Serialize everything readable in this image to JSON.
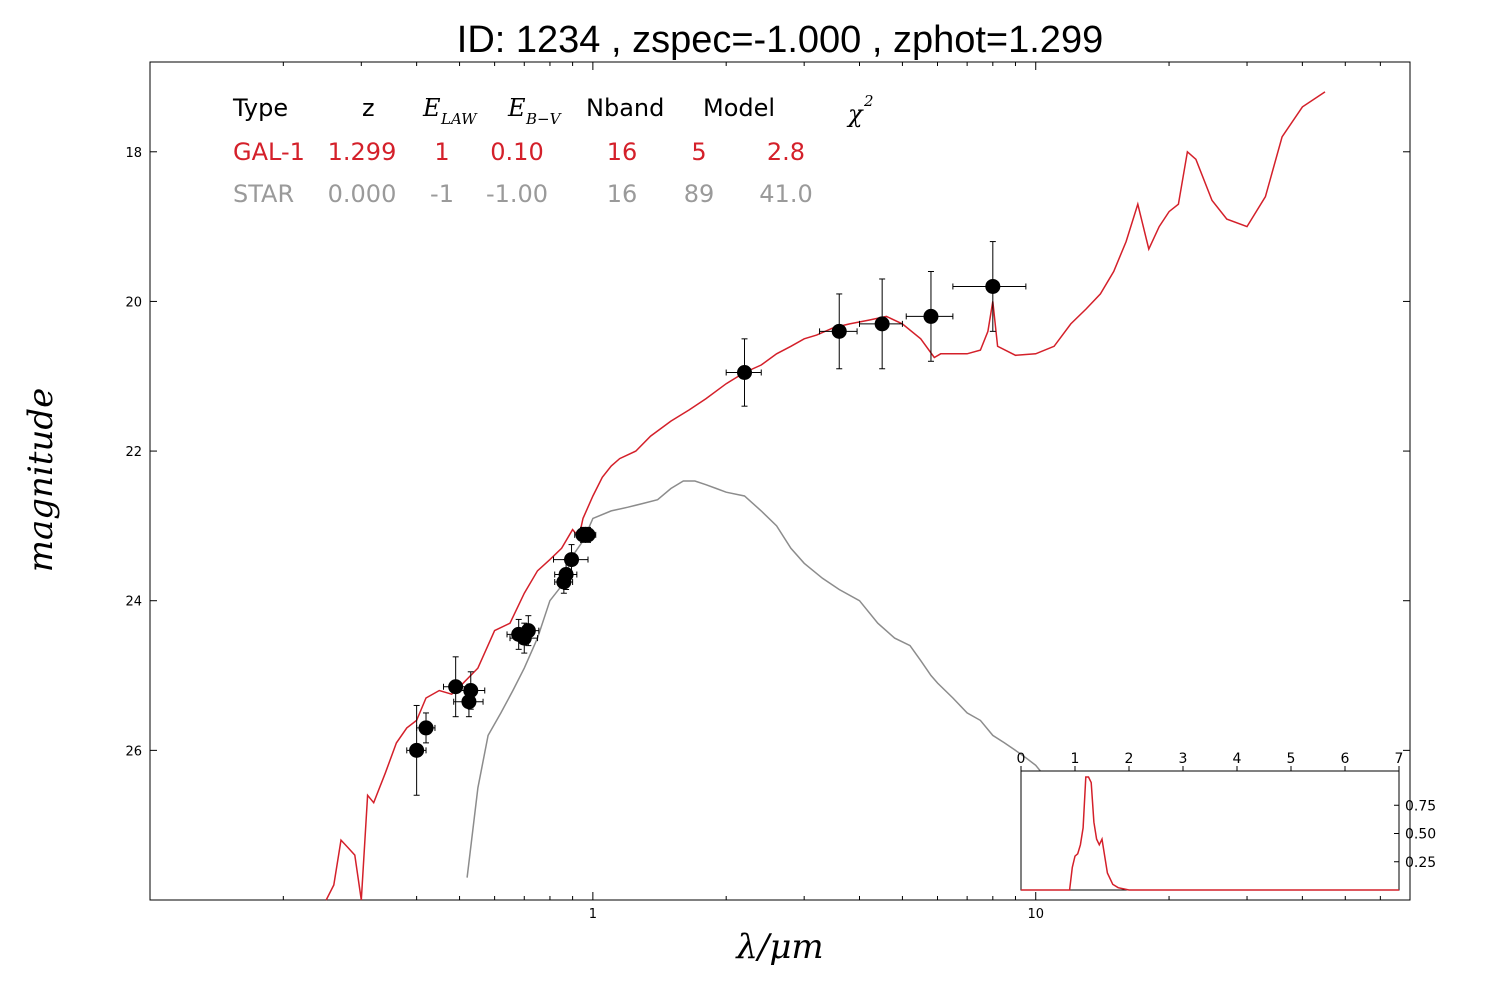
{
  "chart_data": [
    {
      "type": "line",
      "title": "ID:  1234  , zspec=-1.000 , zphot=1.299",
      "xlabel": "λ/μm",
      "ylabel": "magnitude",
      "xscale": "log",
      "xlim": [
        0.1,
        70
      ],
      "ylim": [
        28,
        16.8
      ],
      "x_ticks": [
        1,
        10
      ],
      "x_tick_labels": [
        "1",
        "10"
      ],
      "y_ticks": [
        18,
        20,
        22,
        24,
        26
      ],
      "y_tick_labels": [
        "18",
        "20",
        "22",
        "24",
        "26"
      ],
      "colors": {
        "galaxy": "#d4202a",
        "star": "#8c8c8c",
        "points": "#000000"
      },
      "table": {
        "header": [
          "Type",
          "z",
          "E",
          "LAW",
          "E",
          "B−V",
          "Nband",
          "Model",
          "χ",
          "2"
        ],
        "rows": [
          {
            "name": "GAL-1",
            "color": "#d4202a",
            "cells": [
              "GAL-1",
              "1.299",
              "1",
              "0.10",
              "16",
              "5",
              "2.8"
            ]
          },
          {
            "name": "STAR",
            "color": "#9a9a9a",
            "cells": [
              "STAR",
              "0.000",
              "-1",
              "-1.00",
              "16",
              "89",
              "41.0"
            ]
          }
        ]
      },
      "series": [
        {
          "name": "GAL-1",
          "x": [
            0.25,
            0.26,
            0.27,
            0.28,
            0.29,
            0.3,
            0.31,
            0.32,
            0.34,
            0.36,
            0.38,
            0.4,
            0.42,
            0.45,
            0.48,
            0.5,
            0.55,
            0.6,
            0.65,
            0.7,
            0.75,
            0.8,
            0.85,
            0.9,
            0.93,
            0.95,
            1.0,
            1.05,
            1.1,
            1.15,
            1.25,
            1.35,
            1.5,
            1.65,
            1.8,
            2.0,
            2.2,
            2.4,
            2.6,
            2.8,
            3.0,
            3.2,
            3.5,
            3.8,
            4.2,
            4.6,
            5.0,
            5.5,
            5.9,
            6.1,
            6.3,
            7.0,
            7.5,
            7.8,
            8.0,
            8.2,
            9.0,
            10.0,
            11.0,
            12.0,
            13.0,
            14.0,
            15.0,
            16.0,
            17.0,
            18.0,
            19.0,
            20.0,
            21.0,
            22.0,
            23.0,
            25.0,
            27.0,
            30.0,
            33.0,
            36.0,
            40.0,
            45.0
          ],
          "y": [
            28.0,
            27.8,
            27.2,
            27.3,
            27.4,
            28.0,
            26.6,
            26.7,
            26.3,
            25.9,
            25.7,
            25.6,
            25.3,
            25.2,
            25.25,
            25.15,
            24.9,
            24.4,
            24.3,
            23.9,
            23.6,
            23.45,
            23.3,
            23.05,
            23.15,
            22.9,
            22.6,
            22.35,
            22.2,
            22.1,
            22.0,
            21.8,
            21.6,
            21.45,
            21.3,
            21.1,
            20.95,
            20.85,
            20.7,
            20.6,
            20.5,
            20.45,
            20.35,
            20.3,
            20.25,
            20.2,
            20.3,
            20.5,
            20.75,
            20.7,
            20.7,
            20.7,
            20.65,
            20.4,
            20.0,
            20.6,
            20.72,
            20.7,
            20.6,
            20.3,
            20.1,
            19.9,
            19.6,
            19.2,
            18.7,
            19.3,
            19.0,
            18.8,
            18.7,
            18.0,
            18.1,
            18.65,
            18.9,
            19.0,
            18.6,
            17.8,
            17.4,
            17.2
          ]
        },
        {
          "name": "STAR",
          "x": [
            0.52,
            0.55,
            0.58,
            0.62,
            0.66,
            0.7,
            0.75,
            0.8,
            0.85,
            0.9,
            0.95,
            1.0,
            1.1,
            1.2,
            1.3,
            1.4,
            1.5,
            1.6,
            1.7,
            1.8,
            1.9,
            2.0,
            2.2,
            2.4,
            2.6,
            2.8,
            3.0,
            3.3,
            3.6,
            4.0,
            4.4,
            4.8,
            5.2,
            5.5,
            5.8,
            6.0,
            6.5,
            7.0,
            7.5,
            8.0,
            8.5,
            9.0,
            9.5,
            10.0,
            11.0,
            11.5
          ],
          "y": [
            27.7,
            26.5,
            25.8,
            25.5,
            25.2,
            24.9,
            24.5,
            24.0,
            23.8,
            23.4,
            23.2,
            22.9,
            22.8,
            22.75,
            22.7,
            22.65,
            22.5,
            22.4,
            22.4,
            22.45,
            22.5,
            22.55,
            22.6,
            22.8,
            23.0,
            23.3,
            23.5,
            23.7,
            23.85,
            24.0,
            24.3,
            24.5,
            24.6,
            24.8,
            25.0,
            25.1,
            25.3,
            25.5,
            25.6,
            25.8,
            25.9,
            26.0,
            26.1,
            26.2,
            26.5,
            26.7
          ]
        }
      ],
      "points": [
        {
          "x": 0.4,
          "y": 26.0,
          "xerr": 0.02,
          "yerr": 0.6
        },
        {
          "x": 0.42,
          "y": 25.7,
          "xerr": 0.02,
          "yerr": 0.2
        },
        {
          "x": 0.49,
          "y": 25.15,
          "xerr": 0.03,
          "yerr": 0.4
        },
        {
          "x": 0.53,
          "y": 25.2,
          "xerr": 0.04,
          "yerr": 0.25
        },
        {
          "x": 0.525,
          "y": 25.35,
          "xerr": 0.04,
          "yerr": 0.2
        },
        {
          "x": 0.68,
          "y": 24.45,
          "xerr": 0.04,
          "yerr": 0.2
        },
        {
          "x": 0.7,
          "y": 24.5,
          "xerr": 0.05,
          "yerr": 0.2
        },
        {
          "x": 0.715,
          "y": 24.4,
          "xerr": 0.04,
          "yerr": 0.2
        },
        {
          "x": 0.86,
          "y": 23.75,
          "xerr": 0.04,
          "yerr": 0.15
        },
        {
          "x": 0.87,
          "y": 23.65,
          "xerr": 0.05,
          "yerr": 0.2
        },
        {
          "x": 0.895,
          "y": 23.45,
          "xerr": 0.08,
          "yerr": 0.2
        },
        {
          "x": 0.95,
          "y": 23.12,
          "xerr": 0.04,
          "yerr": 0.1
        },
        {
          "x": 0.975,
          "y": 23.12,
          "xerr": 0.04,
          "yerr": 0.1
        },
        {
          "x": 2.2,
          "y": 20.95,
          "xerr": 0.2,
          "yerr": 0.45
        },
        {
          "x": 3.6,
          "y": 20.4,
          "xerr": 0.35,
          "yerr": 0.5
        },
        {
          "x": 4.5,
          "y": 20.3,
          "xerr": 0.5,
          "yerr": 0.6
        },
        {
          "x": 5.8,
          "y": 20.2,
          "xerr": 0.7,
          "yerr": 0.6
        },
        {
          "x": 8.0,
          "y": 19.8,
          "xerr": 1.5,
          "yerr": 0.6
        }
      ]
    },
    {
      "type": "line",
      "title": "",
      "xlim": [
        0,
        7
      ],
      "ylim": [
        0,
        1
      ],
      "x_ticks": [
        0,
        1,
        2,
        3,
        4,
        5,
        6,
        7
      ],
      "x_tick_labels": [
        "0",
        "1",
        "2",
        "3",
        "4",
        "5",
        "6",
        "7"
      ],
      "y_ticks": [
        0.25,
        0.5,
        0.75
      ],
      "y_tick_labels": [
        "0.25",
        "0.50",
        "0.75"
      ],
      "series": [
        {
          "name": "",
          "x": [
            0,
            0.9,
            0.95,
            1.0,
            1.05,
            1.1,
            1.15,
            1.2,
            1.25,
            1.3,
            1.35,
            1.4,
            1.45,
            1.5,
            1.55,
            1.6,
            1.7,
            1.8,
            2.0,
            7.0
          ],
          "y": [
            0,
            0,
            0.2,
            0.3,
            0.32,
            0.4,
            0.55,
            1.0,
            1.0,
            0.95,
            0.6,
            0.45,
            0.4,
            0.45,
            0.3,
            0.15,
            0.05,
            0.02,
            0,
            0
          ]
        }
      ]
    }
  ]
}
